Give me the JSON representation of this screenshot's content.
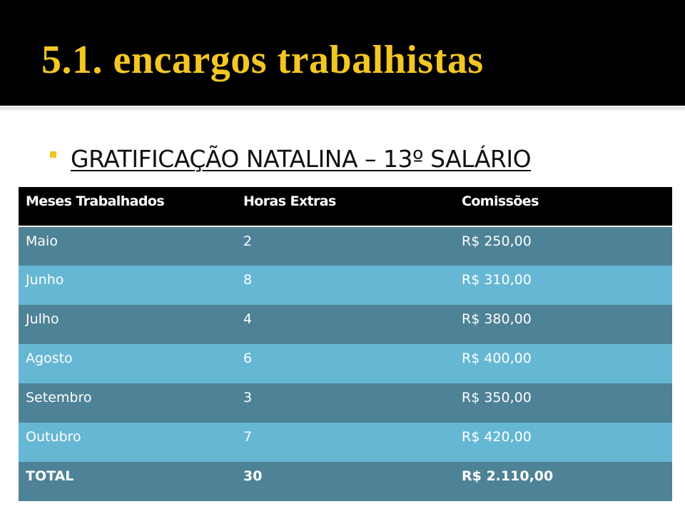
{
  "slide": {
    "title": "5.1. encargos trabalhistas",
    "bullet": "GRATIFICAÇÃO NATALINA – 13º SALÁRIO"
  },
  "colors": {
    "title": "#f3c623",
    "header_band": "#000000",
    "row_dark": "#4e8296",
    "row_light": "#66b7d3"
  },
  "table": {
    "headers": [
      "Meses Trabalhados",
      "Horas Extras",
      "Comissões"
    ],
    "rows": [
      [
        "Maio",
        "2",
        "R$ 250,00"
      ],
      [
        "Junho",
        "8",
        "R$ 310,00"
      ],
      [
        "Julho",
        "4",
        "R$ 380,00"
      ],
      [
        "Agosto",
        "6",
        "R$ 400,00"
      ],
      [
        "Setembro",
        "3",
        "R$ 350,00"
      ],
      [
        "Outubro",
        "7",
        "R$ 420,00"
      ],
      [
        "TOTAL",
        "30",
        "R$ 2.110,00"
      ]
    ]
  }
}
